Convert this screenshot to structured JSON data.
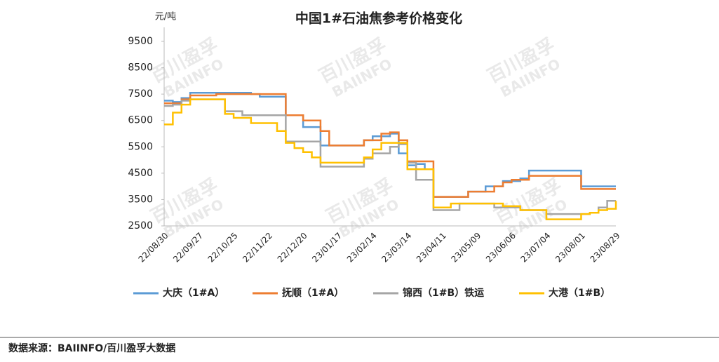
{
  "chart_data": {
    "type": "line",
    "title": "中国1#石油焦参考价格变化",
    "y_label": "元/吨",
    "source": "数据来源：BAIINFO/百川盈孚大数据",
    "watermark": [
      "百川盈孚",
      "BAIINFO"
    ],
    "categories": [
      "22/08/30",
      null,
      null,
      null,
      "22/09/27",
      null,
      null,
      null,
      "22/10/25",
      null,
      null,
      null,
      "22/11/22",
      null,
      null,
      null,
      "22/12/20",
      null,
      null,
      null,
      "23/01/17",
      null,
      null,
      null,
      "23/02/14",
      null,
      null,
      null,
      "23/03/14",
      null,
      null,
      null,
      "23/04/11",
      null,
      null,
      null,
      "23/05/09",
      null,
      null,
      null,
      "23/06/06",
      null,
      null,
      null,
      "23/07/04",
      null,
      null,
      null,
      "23/08/01",
      null,
      null,
      null,
      "23/08/29"
    ],
    "ylim": [
      2500,
      9500
    ],
    "yticks": [
      2500,
      3500,
      4500,
      5500,
      6500,
      7500,
      8500,
      9500
    ],
    "legend": "bottom",
    "series": [
      {
        "name": "大庆（1#A）",
        "color": "#5b9bd5",
        "values": [
          7250,
          7200,
          7350,
          7550,
          7550,
          7550,
          7550,
          7550,
          7550,
          7550,
          7500,
          7400,
          7400,
          7400,
          6700,
          6700,
          6250,
          6250,
          5550,
          5550,
          5550,
          5550,
          5550,
          5750,
          5900,
          5900,
          6000,
          5250,
          4800,
          4850,
          4650,
          3600,
          3600,
          3600,
          3600,
          3800,
          3800,
          4000,
          4000,
          4200,
          4200,
          4300,
          4600,
          4600,
          4600,
          4600,
          4600,
          4600,
          4000,
          4000,
          4000,
          4000,
          4000
        ]
      },
      {
        "name": "抚顺（1#A）",
        "color": "#ed7d31",
        "values": [
          7150,
          7150,
          7300,
          7450,
          7450,
          7450,
          7500,
          7500,
          7500,
          7500,
          7500,
          7500,
          7500,
          7500,
          6700,
          6700,
          6500,
          6500,
          6100,
          5550,
          5550,
          5550,
          5550,
          5750,
          5750,
          6000,
          6050,
          5750,
          4950,
          4950,
          4950,
          3600,
          3600,
          3600,
          3600,
          3800,
          3800,
          3800,
          4000,
          4150,
          4250,
          4250,
          4400,
          4400,
          4400,
          4400,
          4400,
          4400,
          3900,
          3900,
          3900,
          3900,
          3900
        ]
      },
      {
        "name": "锦西（1#B）铁运",
        "color": "#a5a5a5",
        "values": [
          7050,
          7100,
          7250,
          7300,
          7300,
          7300,
          7300,
          6850,
          6850,
          6700,
          6700,
          6700,
          6700,
          6700,
          5700,
          5700,
          5700,
          5700,
          4750,
          4750,
          4750,
          4750,
          4750,
          5050,
          5250,
          5250,
          5500,
          5600,
          4900,
          4250,
          4250,
          3100,
          3100,
          3100,
          3350,
          3350,
          3350,
          3350,
          3200,
          3200,
          3200,
          3100,
          3100,
          3100,
          2950,
          2950,
          2950,
          2950,
          2950,
          3000,
          3200,
          3450,
          3450
        ]
      },
      {
        "name": "大港（1#B）",
        "color": "#ffc000",
        "values": [
          6350,
          6800,
          7100,
          7300,
          7300,
          7300,
          7300,
          6750,
          6600,
          6600,
          6400,
          6400,
          6400,
          6100,
          5650,
          5450,
          5300,
          5100,
          4900,
          4900,
          4900,
          4900,
          4900,
          5100,
          5400,
          5650,
          5650,
          5650,
          4650,
          4650,
          4650,
          3200,
          3200,
          3350,
          3350,
          3350,
          3350,
          3350,
          3350,
          3250,
          3250,
          3100,
          3100,
          3100,
          2750,
          2750,
          2750,
          2750,
          2950,
          3000,
          3100,
          3150,
          3450
        ]
      }
    ]
  }
}
